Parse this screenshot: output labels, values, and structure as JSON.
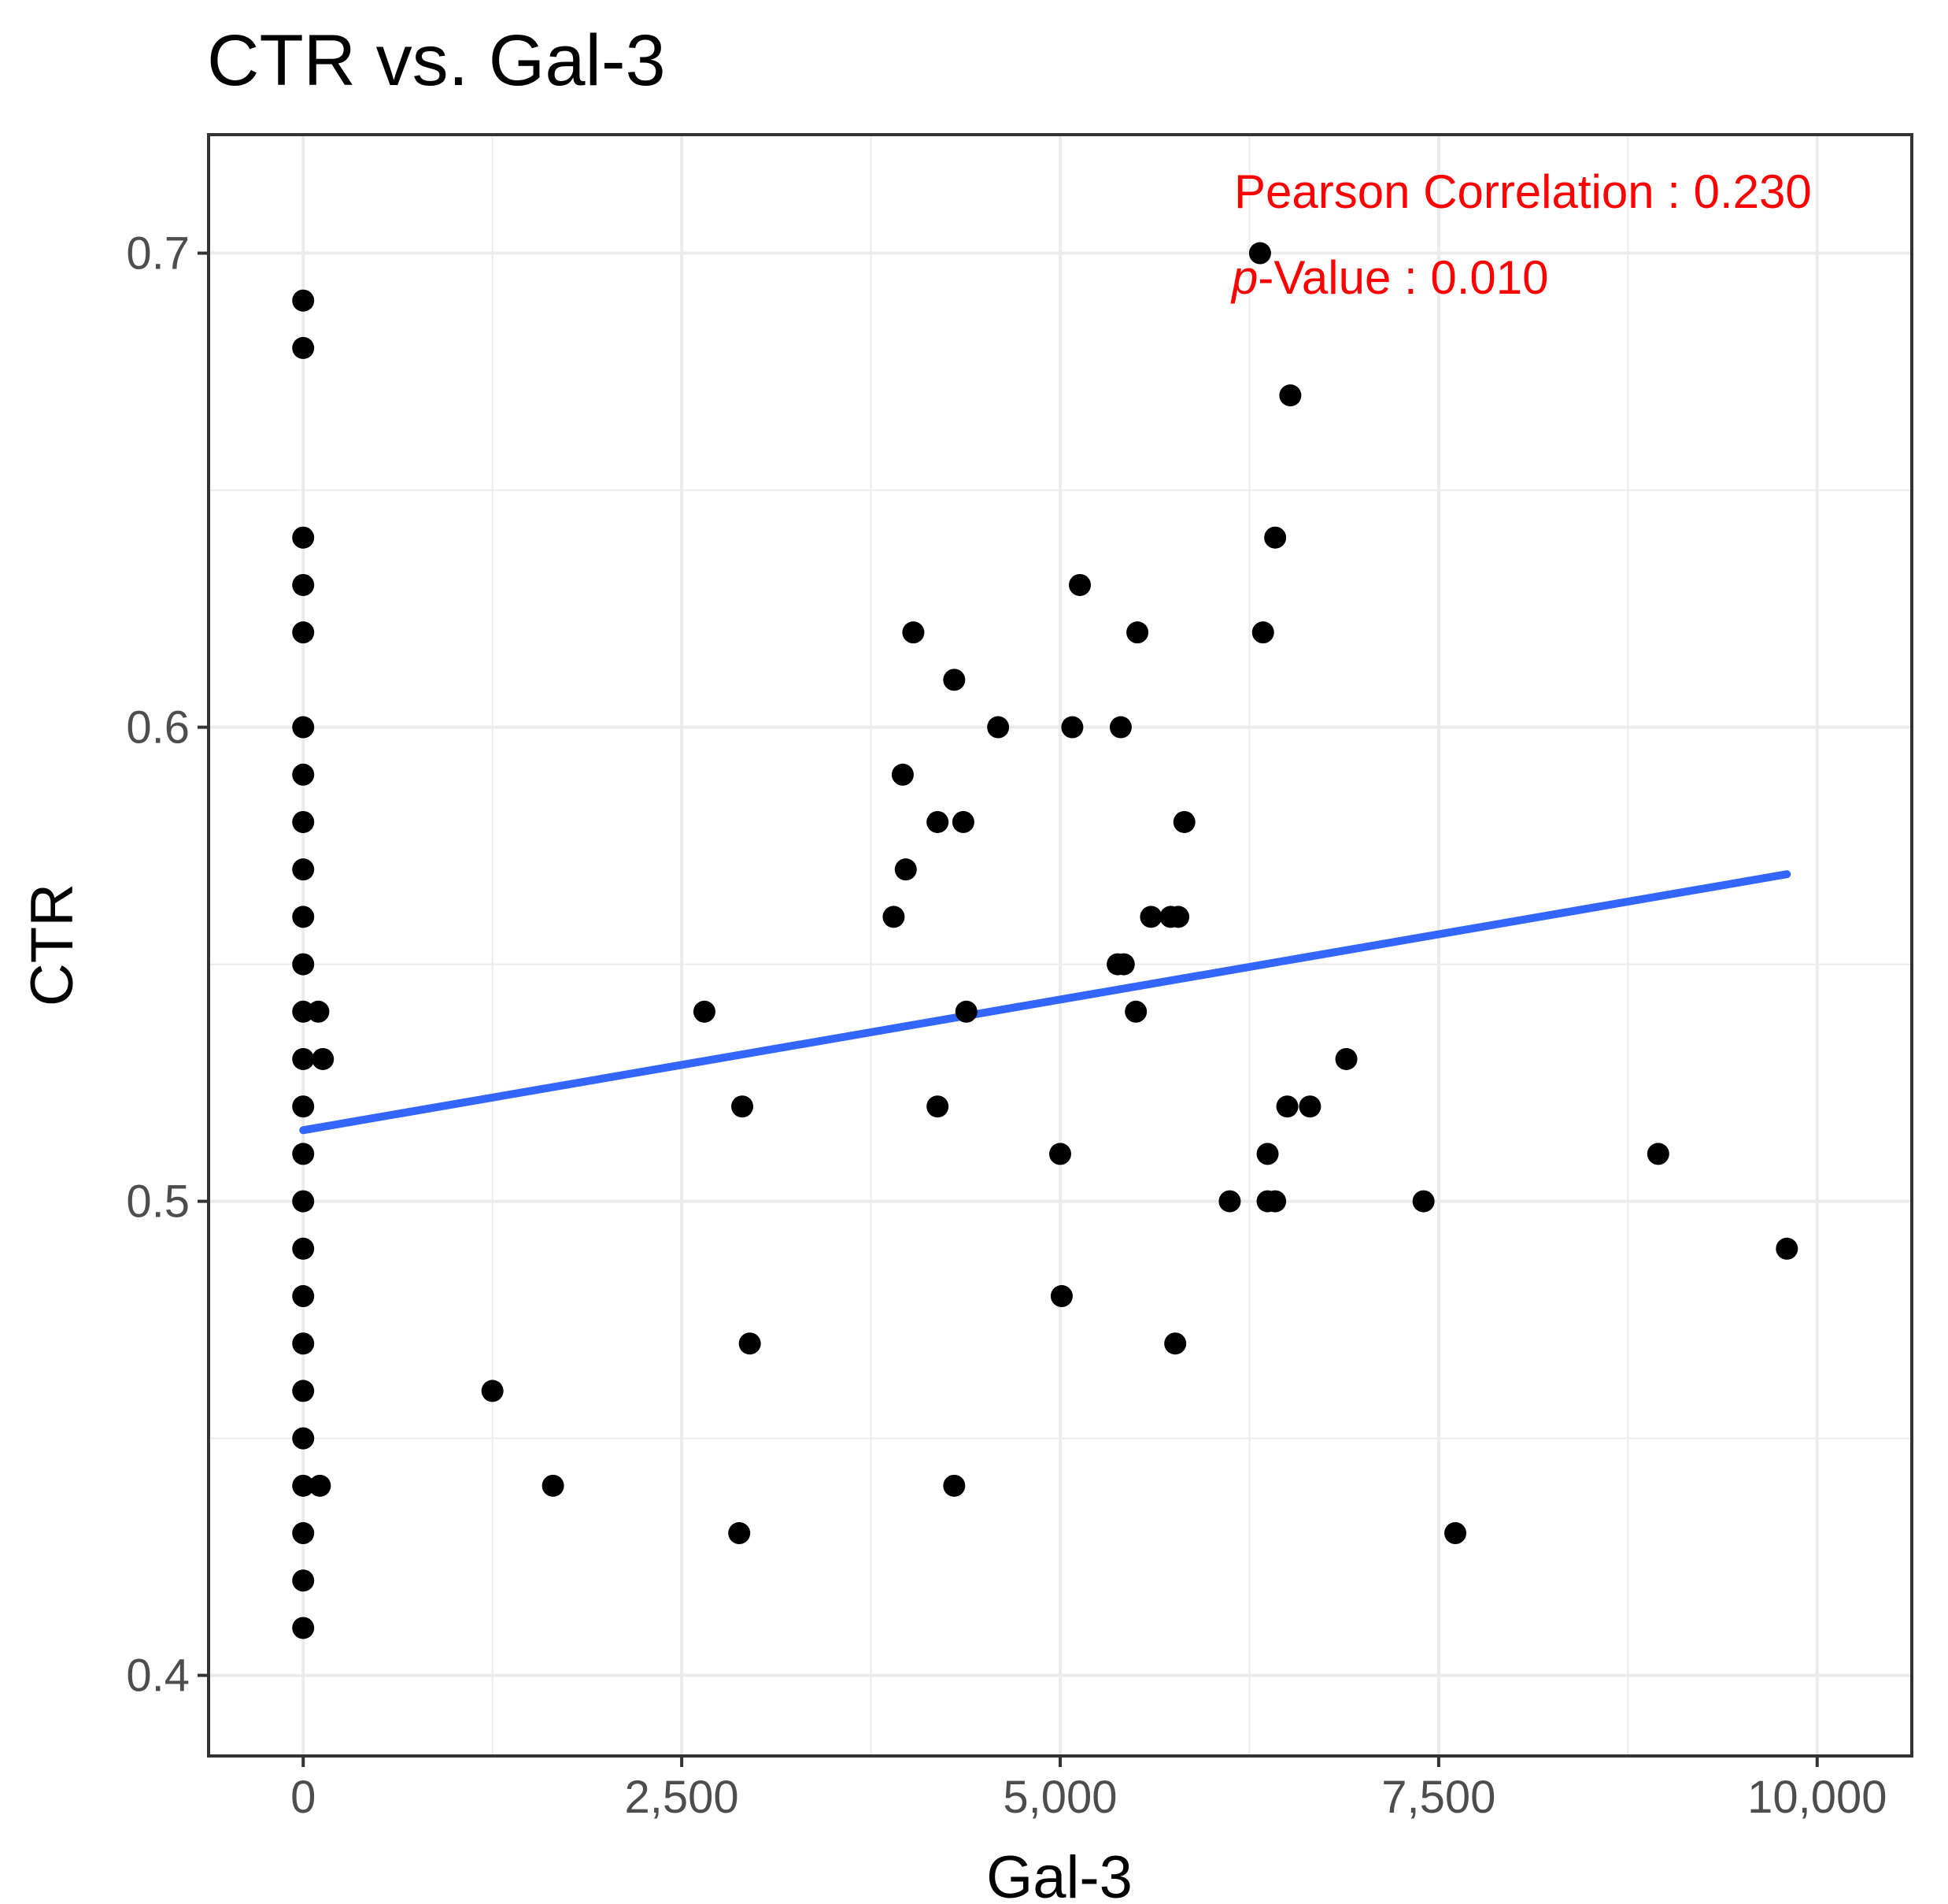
{
  "chart_data": {
    "type": "scatter",
    "title": "CTR vs. Gal-3",
    "xlabel": "Gal-3",
    "ylabel": "CTR",
    "xlim": [
      -625,
      10625
    ],
    "ylim": [
      0.383,
      0.725
    ],
    "x_ticks": [
      {
        "value": 0,
        "label": "0"
      },
      {
        "value": 2500,
        "label": "2,500"
      },
      {
        "value": 5000,
        "label": "5,000"
      },
      {
        "value": 7500,
        "label": "7,500"
      },
      {
        "value": 10000,
        "label": "10,000"
      }
    ],
    "y_ticks": [
      {
        "value": 0.4,
        "label": "0.4"
      },
      {
        "value": 0.5,
        "label": "0.5"
      },
      {
        "value": 0.6,
        "label": "0.6"
      },
      {
        "value": 0.7,
        "label": "0.7"
      }
    ],
    "grid": true,
    "annotations": {
      "pearson_label": "Pearson Correlation : 0.230",
      "p_prefix": "p",
      "p_suffix": "-Value : 0.010"
    },
    "fit_line": {
      "x": [
        0,
        9800
      ],
      "y": [
        0.515,
        0.569
      ],
      "color": "#3366ff"
    },
    "point_color": "#000000",
    "points": [
      [
        0,
        0.69
      ],
      [
        0,
        0.68
      ],
      [
        0,
        0.64
      ],
      [
        0,
        0.63
      ],
      [
        0,
        0.62
      ],
      [
        0,
        0.6
      ],
      [
        0,
        0.59
      ],
      [
        0,
        0.58
      ],
      [
        0,
        0.57
      ],
      [
        0,
        0.56
      ],
      [
        0,
        0.55
      ],
      [
        0,
        0.54
      ],
      [
        0,
        0.53
      ],
      [
        0,
        0.52
      ],
      [
        0,
        0.51
      ],
      [
        0,
        0.5
      ],
      [
        0,
        0.49
      ],
      [
        0,
        0.48
      ],
      [
        0,
        0.47
      ],
      [
        0,
        0.46
      ],
      [
        0,
        0.45
      ],
      [
        0,
        0.44
      ],
      [
        0,
        0.43
      ],
      [
        0,
        0.42
      ],
      [
        0,
        0.41
      ],
      [
        100,
        0.54
      ],
      [
        130,
        0.53
      ],
      [
        110,
        0.44
      ],
      [
        1250,
        0.46
      ],
      [
        1650,
        0.44
      ],
      [
        2650,
        0.54
      ],
      [
        2900,
        0.52
      ],
      [
        2950,
        0.47
      ],
      [
        2880,
        0.43
      ],
      [
        3900,
        0.56
      ],
      [
        3960,
        0.59
      ],
      [
        3980,
        0.57
      ],
      [
        4030,
        0.62
      ],
      [
        4190,
        0.58
      ],
      [
        4190,
        0.52
      ],
      [
        4300,
        0.61
      ],
      [
        4300,
        0.44
      ],
      [
        4360,
        0.58
      ],
      [
        4380,
        0.54
      ],
      [
        4590,
        0.6
      ],
      [
        5000,
        0.51
      ],
      [
        5010,
        0.48
      ],
      [
        5080,
        0.6
      ],
      [
        5130,
        0.63
      ],
      [
        5380,
        0.55
      ],
      [
        5400,
        0.6
      ],
      [
        5420,
        0.55
      ],
      [
        5500,
        0.54
      ],
      [
        5510,
        0.62
      ],
      [
        5600,
        0.56
      ],
      [
        5730,
        0.56
      ],
      [
        5760,
        0.47
      ],
      [
        5780,
        0.56
      ],
      [
        5820,
        0.58
      ],
      [
        6120,
        0.5
      ],
      [
        6320,
        0.7
      ],
      [
        6340,
        0.62
      ],
      [
        6370,
        0.51
      ],
      [
        6370,
        0.5
      ],
      [
        6420,
        0.5
      ],
      [
        6420,
        0.64
      ],
      [
        6500,
        0.52
      ],
      [
        6520,
        0.67
      ],
      [
        6650,
        0.52
      ],
      [
        6890,
        0.53
      ],
      [
        7400,
        0.5
      ],
      [
        7610,
        0.43
      ],
      [
        8950,
        0.51
      ],
      [
        9800,
        0.49
      ]
    ]
  }
}
